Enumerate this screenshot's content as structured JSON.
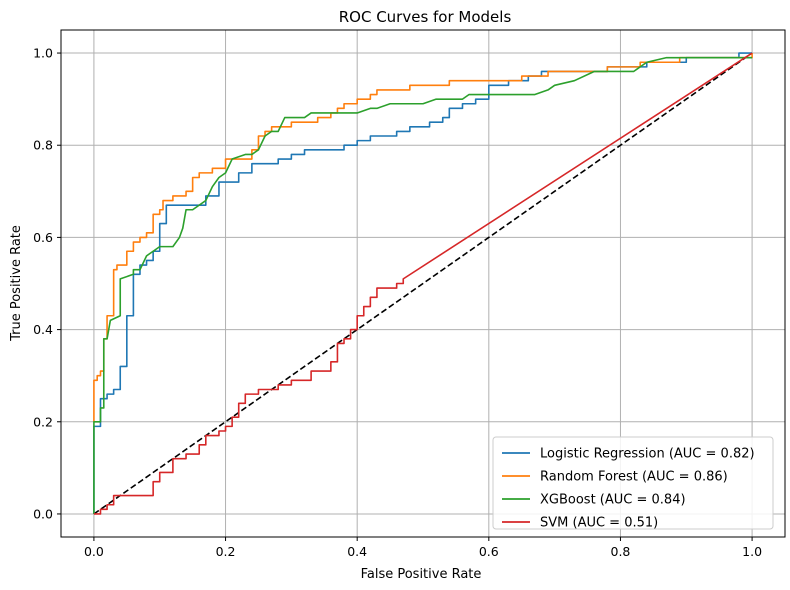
{
  "chart_data": {
    "type": "line",
    "title": "ROC Curves for Models",
    "xlabel": "False Positive Rate",
    "ylabel": "True Positive Rate",
    "xlim": [
      -0.05,
      1.05
    ],
    "ylim": [
      -0.05,
      1.05
    ],
    "xticks": [
      0.0,
      0.2,
      0.4,
      0.6,
      0.8,
      1.0
    ],
    "xtick_labels": [
      "0.0",
      "0.2",
      "0.4",
      "0.6",
      "0.8",
      "1.0"
    ],
    "yticks": [
      0.0,
      0.2,
      0.4,
      0.6,
      0.8,
      1.0
    ],
    "ytick_labels": [
      "0.0",
      "0.2",
      "0.4",
      "0.6",
      "0.8",
      "1.0"
    ],
    "grid": true,
    "legend_position": "lower-right",
    "series": [
      {
        "name": "Logistic Regression (AUC = 0.82)",
        "color": "#1f77b4",
        "style": "step",
        "points": [
          [
            0,
            0
          ],
          [
            0,
            0.19
          ],
          [
            0.01,
            0.19
          ],
          [
            0.01,
            0.25
          ],
          [
            0.02,
            0.25
          ],
          [
            0.02,
            0.26
          ],
          [
            0.03,
            0.26
          ],
          [
            0.03,
            0.27
          ],
          [
            0.04,
            0.27
          ],
          [
            0.04,
            0.32
          ],
          [
            0.05,
            0.32
          ],
          [
            0.05,
            0.43
          ],
          [
            0.06,
            0.43
          ],
          [
            0.06,
            0.52
          ],
          [
            0.07,
            0.52
          ],
          [
            0.07,
            0.54
          ],
          [
            0.08,
            0.54
          ],
          [
            0.08,
            0.55
          ],
          [
            0.09,
            0.55
          ],
          [
            0.09,
            0.57
          ],
          [
            0.1,
            0.57
          ],
          [
            0.1,
            0.63
          ],
          [
            0.11,
            0.63
          ],
          [
            0.11,
            0.67
          ],
          [
            0.13,
            0.67
          ],
          [
            0.15,
            0.67
          ],
          [
            0.17,
            0.67
          ],
          [
            0.17,
            0.69
          ],
          [
            0.19,
            0.69
          ],
          [
            0.19,
            0.72
          ],
          [
            0.22,
            0.72
          ],
          [
            0.22,
            0.74
          ],
          [
            0.24,
            0.74
          ],
          [
            0.24,
            0.76
          ],
          [
            0.28,
            0.76
          ],
          [
            0.28,
            0.77
          ],
          [
            0.3,
            0.77
          ],
          [
            0.3,
            0.78
          ],
          [
            0.32,
            0.78
          ],
          [
            0.32,
            0.79
          ],
          [
            0.38,
            0.79
          ],
          [
            0.38,
            0.8
          ],
          [
            0.4,
            0.8
          ],
          [
            0.4,
            0.81
          ],
          [
            0.42,
            0.81
          ],
          [
            0.42,
            0.82
          ],
          [
            0.46,
            0.82
          ],
          [
            0.46,
            0.83
          ],
          [
            0.48,
            0.83
          ],
          [
            0.48,
            0.84
          ],
          [
            0.51,
            0.84
          ],
          [
            0.51,
            0.85
          ],
          [
            0.53,
            0.85
          ],
          [
            0.53,
            0.86
          ],
          [
            0.54,
            0.86
          ],
          [
            0.54,
            0.88
          ],
          [
            0.56,
            0.88
          ],
          [
            0.56,
            0.89
          ],
          [
            0.58,
            0.89
          ],
          [
            0.58,
            0.9
          ],
          [
            0.6,
            0.9
          ],
          [
            0.6,
            0.93
          ],
          [
            0.63,
            0.93
          ],
          [
            0.63,
            0.94
          ],
          [
            0.66,
            0.94
          ],
          [
            0.66,
            0.95
          ],
          [
            0.68,
            0.95
          ],
          [
            0.68,
            0.96
          ],
          [
            0.7,
            0.96
          ],
          [
            0.7,
            0.96
          ],
          [
            0.78,
            0.96
          ],
          [
            0.78,
            0.97
          ],
          [
            0.84,
            0.97
          ],
          [
            0.84,
            0.98
          ],
          [
            0.9,
            0.98
          ],
          [
            0.9,
            0.99
          ],
          [
            0.98,
            0.99
          ],
          [
            0.98,
            1.0
          ],
          [
            1.0,
            1.0
          ]
        ]
      },
      {
        "name": "Random Forest (AUC = 0.86)",
        "color": "#ff7f0e",
        "style": "step",
        "points": [
          [
            0,
            0.2
          ],
          [
            0,
            0.29
          ],
          [
            0.005,
            0.29
          ],
          [
            0.005,
            0.3
          ],
          [
            0.01,
            0.3
          ],
          [
            0.01,
            0.31
          ],
          [
            0.015,
            0.31
          ],
          [
            0.015,
            0.38
          ],
          [
            0.02,
            0.38
          ],
          [
            0.02,
            0.43
          ],
          [
            0.03,
            0.43
          ],
          [
            0.03,
            0.53
          ],
          [
            0.035,
            0.53
          ],
          [
            0.035,
            0.54
          ],
          [
            0.05,
            0.54
          ],
          [
            0.05,
            0.57
          ],
          [
            0.06,
            0.57
          ],
          [
            0.06,
            0.59
          ],
          [
            0.07,
            0.59
          ],
          [
            0.07,
            0.6
          ],
          [
            0.08,
            0.6
          ],
          [
            0.08,
            0.61
          ],
          [
            0.09,
            0.61
          ],
          [
            0.09,
            0.65
          ],
          [
            0.1,
            0.65
          ],
          [
            0.1,
            0.66
          ],
          [
            0.105,
            0.66
          ],
          [
            0.105,
            0.68
          ],
          [
            0.12,
            0.68
          ],
          [
            0.12,
            0.69
          ],
          [
            0.14,
            0.69
          ],
          [
            0.14,
            0.7
          ],
          [
            0.15,
            0.7
          ],
          [
            0.15,
            0.73
          ],
          [
            0.16,
            0.73
          ],
          [
            0.16,
            0.74
          ],
          [
            0.18,
            0.74
          ],
          [
            0.18,
            0.75
          ],
          [
            0.2,
            0.75
          ],
          [
            0.2,
            0.77
          ],
          [
            0.24,
            0.77
          ],
          [
            0.24,
            0.79
          ],
          [
            0.25,
            0.79
          ],
          [
            0.25,
            0.82
          ],
          [
            0.26,
            0.82
          ],
          [
            0.26,
            0.83
          ],
          [
            0.27,
            0.83
          ],
          [
            0.27,
            0.84
          ],
          [
            0.28,
            0.84
          ],
          [
            0.28,
            0.84
          ],
          [
            0.3,
            0.84
          ],
          [
            0.3,
            0.85
          ],
          [
            0.32,
            0.85
          ],
          [
            0.32,
            0.85
          ],
          [
            0.34,
            0.85
          ],
          [
            0.34,
            0.86
          ],
          [
            0.36,
            0.86
          ],
          [
            0.36,
            0.87
          ],
          [
            0.37,
            0.87
          ],
          [
            0.37,
            0.88
          ],
          [
            0.38,
            0.88
          ],
          [
            0.38,
            0.89
          ],
          [
            0.4,
            0.89
          ],
          [
            0.4,
            0.9
          ],
          [
            0.42,
            0.9
          ],
          [
            0.42,
            0.91
          ],
          [
            0.43,
            0.91
          ],
          [
            0.43,
            0.92
          ],
          [
            0.48,
            0.92
          ],
          [
            0.48,
            0.93
          ],
          [
            0.54,
            0.93
          ],
          [
            0.54,
            0.94
          ],
          [
            0.65,
            0.94
          ],
          [
            0.65,
            0.95
          ],
          [
            0.69,
            0.95
          ],
          [
            0.69,
            0.96
          ],
          [
            0.78,
            0.96
          ],
          [
            0.78,
            0.97
          ],
          [
            0.83,
            0.97
          ],
          [
            0.83,
            0.98
          ],
          [
            0.89,
            0.98
          ],
          [
            0.89,
            0.99
          ],
          [
            1.0,
            0.99
          ],
          [
            1.0,
            1.0
          ]
        ]
      },
      {
        "name": "XGBoost (AUC = 0.84)",
        "color": "#2ca02c",
        "style": "line",
        "points": [
          [
            0,
            0
          ],
          [
            0,
            0.2
          ],
          [
            0.01,
            0.2
          ],
          [
            0.01,
            0.23
          ],
          [
            0.015,
            0.23
          ],
          [
            0.015,
            0.38
          ],
          [
            0.02,
            0.38
          ],
          [
            0.025,
            0.42
          ],
          [
            0.04,
            0.43
          ],
          [
            0.04,
            0.51
          ],
          [
            0.06,
            0.52
          ],
          [
            0.06,
            0.53
          ],
          [
            0.07,
            0.53
          ],
          [
            0.08,
            0.56
          ],
          [
            0.09,
            0.57
          ],
          [
            0.1,
            0.58
          ],
          [
            0.12,
            0.58
          ],
          [
            0.13,
            0.6
          ],
          [
            0.135,
            0.62
          ],
          [
            0.14,
            0.66
          ],
          [
            0.15,
            0.66
          ],
          [
            0.16,
            0.67
          ],
          [
            0.17,
            0.68
          ],
          [
            0.18,
            0.71
          ],
          [
            0.19,
            0.73
          ],
          [
            0.2,
            0.74
          ],
          [
            0.21,
            0.77
          ],
          [
            0.23,
            0.78
          ],
          [
            0.24,
            0.78
          ],
          [
            0.25,
            0.79
          ],
          [
            0.26,
            0.82
          ],
          [
            0.27,
            0.83
          ],
          [
            0.28,
            0.83
          ],
          [
            0.29,
            0.86
          ],
          [
            0.32,
            0.86
          ],
          [
            0.33,
            0.87
          ],
          [
            0.36,
            0.87
          ],
          [
            0.38,
            0.87
          ],
          [
            0.4,
            0.87
          ],
          [
            0.42,
            0.88
          ],
          [
            0.43,
            0.88
          ],
          [
            0.45,
            0.89
          ],
          [
            0.5,
            0.89
          ],
          [
            0.52,
            0.9
          ],
          [
            0.56,
            0.9
          ],
          [
            0.57,
            0.91
          ],
          [
            0.65,
            0.91
          ],
          [
            0.67,
            0.91
          ],
          [
            0.69,
            0.92
          ],
          [
            0.7,
            0.93
          ],
          [
            0.73,
            0.94
          ],
          [
            0.76,
            0.96
          ],
          [
            0.82,
            0.96
          ],
          [
            0.84,
            0.98
          ],
          [
            0.87,
            0.99
          ],
          [
            1.0,
            0.99
          ]
        ]
      },
      {
        "name": "SVM (AUC = 0.51)",
        "color": "#d62728",
        "style": "step",
        "points": [
          [
            0,
            0
          ],
          [
            0.01,
            0
          ],
          [
            0.01,
            0.01
          ],
          [
            0.02,
            0.01
          ],
          [
            0.02,
            0.02
          ],
          [
            0.03,
            0.02
          ],
          [
            0.03,
            0.04
          ],
          [
            0.09,
            0.04
          ],
          [
            0.09,
            0.07
          ],
          [
            0.1,
            0.07
          ],
          [
            0.1,
            0.09
          ],
          [
            0.12,
            0.09
          ],
          [
            0.12,
            0.12
          ],
          [
            0.14,
            0.12
          ],
          [
            0.14,
            0.13
          ],
          [
            0.16,
            0.13
          ],
          [
            0.16,
            0.15
          ],
          [
            0.17,
            0.15
          ],
          [
            0.17,
            0.17
          ],
          [
            0.19,
            0.17
          ],
          [
            0.19,
            0.18
          ],
          [
            0.2,
            0.18
          ],
          [
            0.2,
            0.19
          ],
          [
            0.21,
            0.19
          ],
          [
            0.21,
            0.21
          ],
          [
            0.22,
            0.21
          ],
          [
            0.22,
            0.24
          ],
          [
            0.23,
            0.24
          ],
          [
            0.23,
            0.26
          ],
          [
            0.25,
            0.26
          ],
          [
            0.25,
            0.27
          ],
          [
            0.28,
            0.27
          ],
          [
            0.28,
            0.28
          ],
          [
            0.3,
            0.28
          ],
          [
            0.3,
            0.29
          ],
          [
            0.33,
            0.29
          ],
          [
            0.33,
            0.31
          ],
          [
            0.36,
            0.31
          ],
          [
            0.36,
            0.33
          ],
          [
            0.37,
            0.33
          ],
          [
            0.37,
            0.37
          ],
          [
            0.38,
            0.37
          ],
          [
            0.38,
            0.38
          ],
          [
            0.39,
            0.38
          ],
          [
            0.39,
            0.4
          ],
          [
            0.4,
            0.4
          ],
          [
            0.4,
            0.43
          ],
          [
            0.41,
            0.43
          ],
          [
            0.41,
            0.45
          ],
          [
            0.42,
            0.45
          ],
          [
            0.42,
            0.47
          ],
          [
            0.43,
            0.47
          ],
          [
            0.43,
            0.49
          ],
          [
            0.46,
            0.49
          ],
          [
            0.46,
            0.5
          ],
          [
            0.47,
            0.5
          ],
          [
            0.47,
            0.51
          ],
          [
            1.0,
            1.0
          ]
        ]
      },
      {
        "name": "",
        "color": "#000000",
        "style": "dashed",
        "points": [
          [
            0,
            0
          ],
          [
            1,
            1
          ]
        ]
      }
    ]
  }
}
